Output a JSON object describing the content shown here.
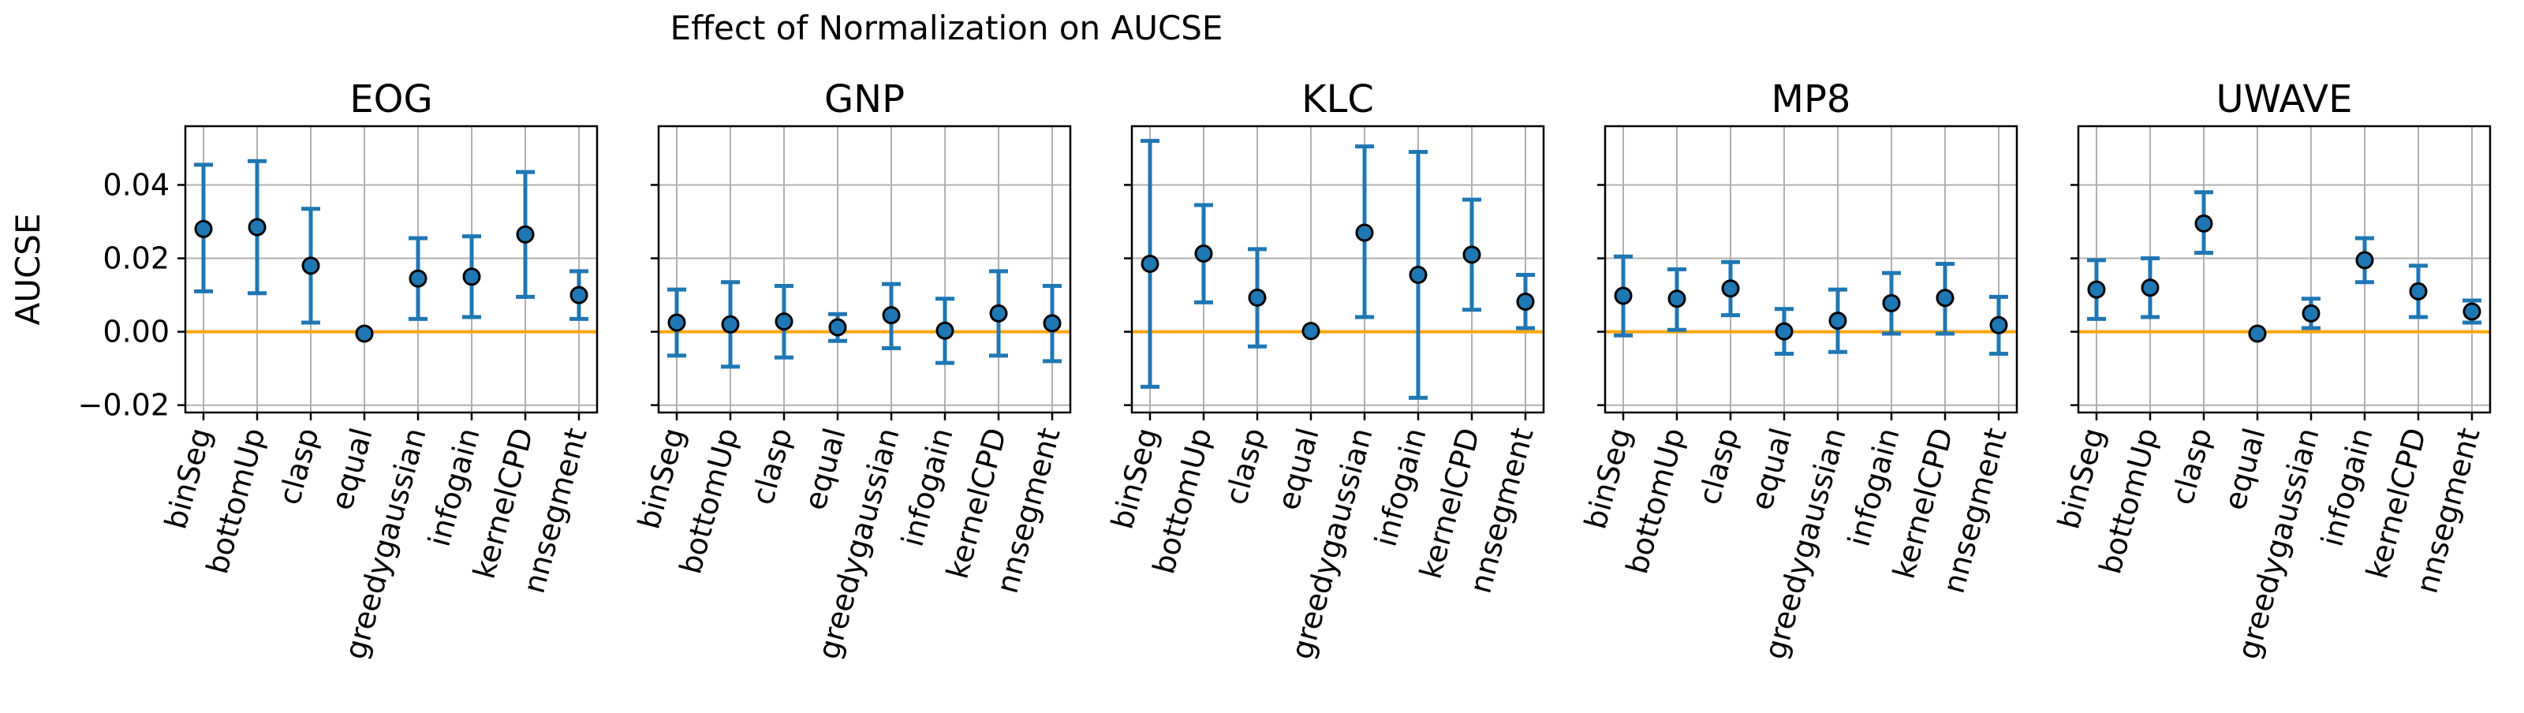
{
  "figure_title": "Effect of Normalization on AUCSE",
  "colors": {
    "errorbar": "#1f77b4",
    "marker_face": "#1f77b4",
    "marker_edge": "#000000",
    "zero_line": "#ffa500",
    "grid": "#b0b0b0",
    "axes": "#000000"
  },
  "chart_data": [
    {
      "type": "scatter",
      "title": "EOG",
      "xlabel": "",
      "ylabel": "AUCSE",
      "ylim": [
        -0.022,
        0.056
      ],
      "yticks": [
        -0.02,
        0.0,
        0.02,
        0.04
      ],
      "ytick_labels": [
        "−0.02",
        "0.00",
        "0.02",
        "0.04"
      ],
      "grid": true,
      "zero_line": 0,
      "categories": [
        "binSeg",
        "bottomUp",
        "clasp",
        "equal",
        "greedygaussian",
        "infogain",
        "kernelCPD",
        "nnsegment"
      ],
      "values": [
        0.028,
        0.0285,
        0.018,
        -0.0005,
        0.0145,
        0.015,
        0.0265,
        0.01
      ],
      "error_low": [
        0.011,
        0.0105,
        0.0025,
        -0.0005,
        0.0035,
        0.004,
        0.0095,
        0.0035
      ],
      "error_high": [
        0.0455,
        0.0465,
        0.0335,
        -0.0005,
        0.0255,
        0.026,
        0.0435,
        0.0165
      ]
    },
    {
      "type": "scatter",
      "title": "GNP",
      "xlabel": "",
      "ylabel": "",
      "ylim": [
        -0.022,
        0.056
      ],
      "yticks": [
        -0.02,
        0.0,
        0.02,
        0.04
      ],
      "ytick_labels": [],
      "grid": true,
      "zero_line": 0,
      "categories": [
        "binSeg",
        "bottomUp",
        "clasp",
        "equal",
        "greedygaussian",
        "infogain",
        "kernelCPD",
        "nnsegment"
      ],
      "values": [
        0.0025,
        0.002,
        0.0028,
        0.0012,
        0.0045,
        0.0003,
        0.005,
        0.0023
      ],
      "error_low": [
        -0.0065,
        -0.0095,
        -0.007,
        -0.0025,
        -0.0045,
        -0.0085,
        -0.0065,
        -0.008
      ],
      "error_high": [
        0.0115,
        0.0135,
        0.0125,
        0.0048,
        0.013,
        0.009,
        0.0165,
        0.0125
      ]
    },
    {
      "type": "scatter",
      "title": "KLC",
      "xlabel": "",
      "ylabel": "",
      "ylim": [
        -0.022,
        0.056
      ],
      "yticks": [
        -0.02,
        0.0,
        0.02,
        0.04
      ],
      "ytick_labels": [],
      "grid": true,
      "zero_line": 0,
      "categories": [
        "binSeg",
        "bottomUp",
        "clasp",
        "equal",
        "greedygaussian",
        "infogain",
        "kernelCPD",
        "nnsegment"
      ],
      "values": [
        0.0185,
        0.0213,
        0.0093,
        0.0002,
        0.027,
        0.0155,
        0.021,
        0.0082
      ],
      "error_low": [
        -0.015,
        0.008,
        -0.004,
        0.0002,
        0.004,
        -0.018,
        0.006,
        0.001
      ],
      "error_high": [
        0.052,
        0.0345,
        0.0225,
        0.0002,
        0.0505,
        0.049,
        0.036,
        0.0155
      ]
    },
    {
      "type": "scatter",
      "title": "MP8",
      "xlabel": "",
      "ylabel": "",
      "ylim": [
        -0.022,
        0.056
      ],
      "yticks": [
        -0.02,
        0.0,
        0.02,
        0.04
      ],
      "ytick_labels": [],
      "grid": true,
      "zero_line": 0,
      "categories": [
        "binSeg",
        "bottomUp",
        "clasp",
        "equal",
        "greedygaussian",
        "infogain",
        "kernelCPD",
        "nnsegment"
      ],
      "values": [
        0.0098,
        0.009,
        0.0118,
        0.0001,
        0.003,
        0.0078,
        0.0092,
        0.0018
      ],
      "error_low": [
        -0.001,
        0.0005,
        0.0045,
        -0.006,
        -0.0055,
        -0.0005,
        -0.0005,
        -0.006
      ],
      "error_high": [
        0.0205,
        0.017,
        0.019,
        0.0062,
        0.0115,
        0.016,
        0.0185,
        0.0095
      ]
    },
    {
      "type": "scatter",
      "title": "UWAVE",
      "xlabel": "",
      "ylabel": "",
      "ylim": [
        -0.022,
        0.056
      ],
      "yticks": [
        -0.02,
        0.0,
        0.02,
        0.04
      ],
      "ytick_labels": [],
      "grid": true,
      "zero_line": 0,
      "categories": [
        "binSeg",
        "bottomUp",
        "clasp",
        "equal",
        "greedygaussian",
        "infogain",
        "kernelCPD",
        "nnsegment"
      ],
      "values": [
        0.0115,
        0.012,
        0.0295,
        -0.0005,
        0.005,
        0.0195,
        0.011,
        0.0055
      ],
      "error_low": [
        0.0035,
        0.004,
        0.0215,
        -0.0005,
        0.001,
        0.0135,
        0.004,
        0.0025
      ],
      "error_high": [
        0.0195,
        0.02,
        0.038,
        -0.0005,
        0.009,
        0.0255,
        0.018,
        0.0085
      ]
    }
  ]
}
